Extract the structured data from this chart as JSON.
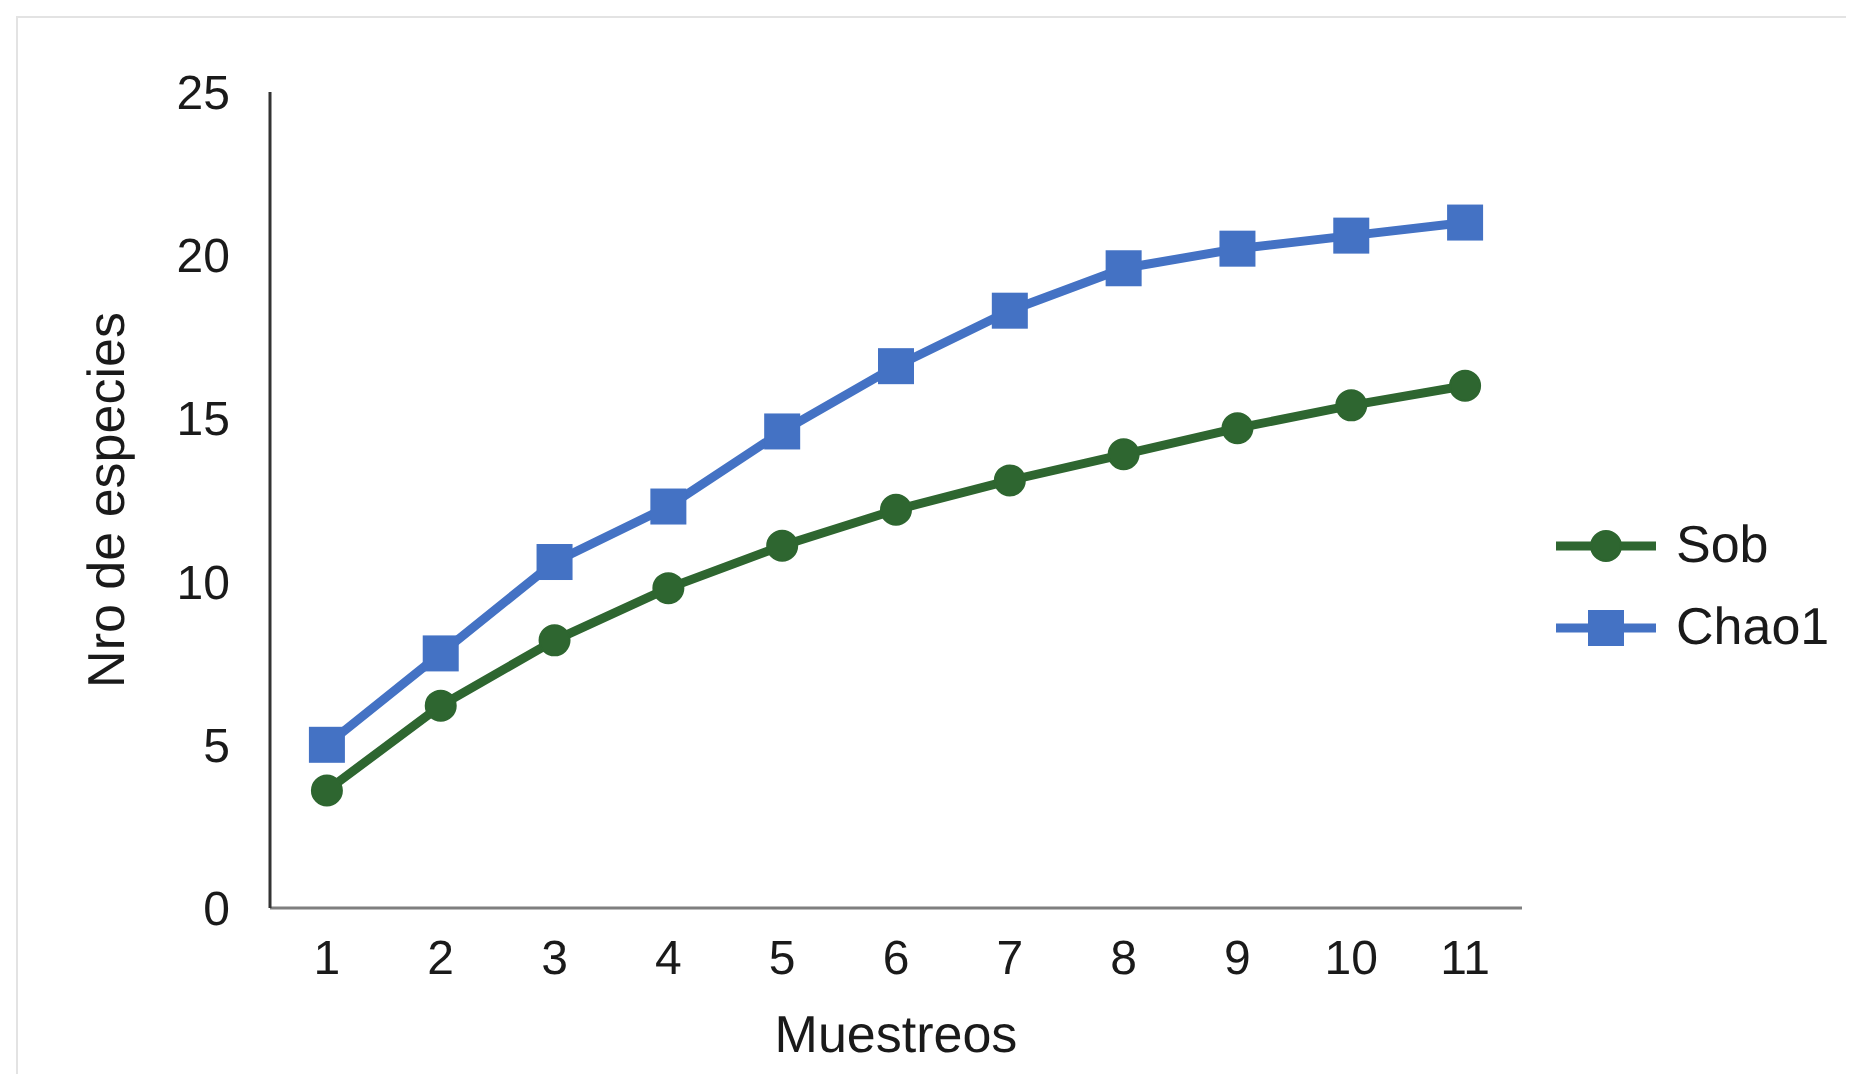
{
  "chart_data": {
    "type": "line",
    "xlabel": "Muestreos",
    "ylabel": "Nro de especies",
    "categories": [
      "1",
      "2",
      "3",
      "4",
      "5",
      "6",
      "7",
      "8",
      "9",
      "10",
      "11"
    ],
    "series": [
      {
        "name": "Sob",
        "color": "#2e6630",
        "marker": "circle",
        "values": [
          3.6,
          6.2,
          8.2,
          9.8,
          11.1,
          12.2,
          13.1,
          13.9,
          14.7,
          15.4,
          16.0
        ]
      },
      {
        "name": "Chao1",
        "color": "#4472c4",
        "marker": "square",
        "values": [
          5.0,
          7.8,
          10.6,
          12.3,
          14.6,
          16.6,
          18.3,
          19.6,
          20.2,
          20.6,
          21.0
        ]
      }
    ],
    "ylim": [
      0,
      25
    ],
    "yticks": [
      0,
      5,
      10,
      15,
      20,
      25
    ],
    "legend": "right",
    "line_style": "solid"
  }
}
